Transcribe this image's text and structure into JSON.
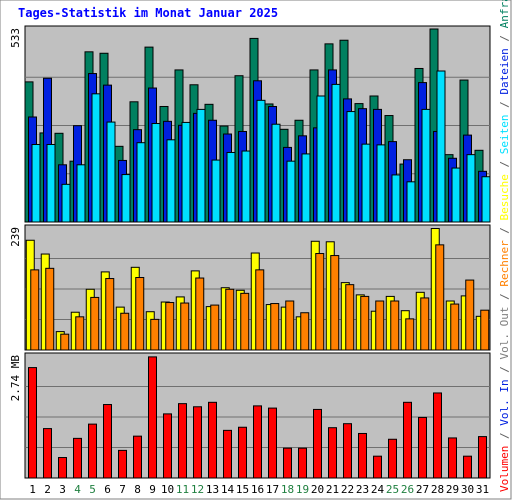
{
  "chart_data": {
    "type": "bar",
    "title": "Tages-Statistik im Monat Januar 2025",
    "days": [
      "1",
      "2",
      "3",
      "4",
      "5",
      "6",
      "7",
      "8",
      "9",
      "10",
      "11",
      "12",
      "13",
      "14",
      "15",
      "16",
      "17",
      "18",
      "19",
      "20",
      "21",
      "22",
      "23",
      "24",
      "25",
      "26",
      "27",
      "28",
      "29",
      "30",
      "31"
    ],
    "weekend_days": [
      "4",
      "5",
      "11",
      "12",
      "18",
      "19",
      "25",
      "26"
    ],
    "panels": [
      {
        "name": "requests",
        "ymax": 533,
        "ymax_label": "533",
        "series": [
          {
            "name": "Anfragen",
            "color": "#008060",
            "values": [
              387,
              246,
              245,
              168,
              470,
              466,
              209,
              332,
              483,
              319,
              420,
              379,
              325,
              265,
              404,
              507,
              326,
              256,
              281,
              420,
              492,
              502,
              327,
              348,
              294,
              160,
              424,
              533,
              186,
              392,
              198
            ]
          },
          {
            "name": "Dateien",
            "color": "#0020e0",
            "values": [
              290,
              397,
              158,
              266,
              410,
              378,
              170,
              255,
              370,
              278,
              267,
              300,
              281,
              243,
              250,
              390,
              319,
              206,
              238,
              260,
              420,
              340,
              313,
              311,
              222,
              172,
              385,
              250,
              176,
              240,
              140
            ]
          },
          {
            "name": "Seiten",
            "color": "#00e0ff",
            "values": [
              214,
              214,
              104,
              158,
              354,
              276,
              131,
              219,
              272,
              227,
              275,
              311,
              171,
              192,
              196,
              336,
              270,
              168,
              188,
              348,
              380,
              305,
              215,
              213,
              130,
              111,
              311,
              417,
              149,
              186,
              125
            ]
          }
        ]
      },
      {
        "name": "visits",
        "ymax": 239,
        "ymax_label": "239",
        "series": [
          {
            "name": "Besuche",
            "color": "#ffff00",
            "values": [
              215,
              188,
              36,
              74,
              119,
              153,
              84,
              162,
              75,
              94,
              104,
              155,
              85,
              122,
              117,
              190,
              89,
              84,
              65,
              213,
              212,
              132,
              108,
              76,
              105,
              77,
              113,
              238,
              96,
              106,
              66
            ]
          },
          {
            "name": "Rechner",
            "color": "#ff8000",
            "values": [
              157,
              160,
              31,
              65,
              103,
              140,
              72,
              142,
              60,
              93,
              92,
              141,
              88,
              119,
              111,
              157,
              91,
              96,
              73,
              189,
              185,
              128,
              105,
              96,
              96,
              61,
              102,
              206,
              90,
              137,
              78
            ]
          }
        ]
      },
      {
        "name": "volume",
        "ymax": 2.74,
        "ymax_label": "2.74 MB",
        "series": [
          {
            "name": "Volumen",
            "color": "#ff0000",
            "values": [
              2.48,
              1.11,
              0.46,
              0.89,
              1.21,
              1.65,
              0.62,
              0.94,
              2.72,
              1.44,
              1.67,
              1.6,
              1.7,
              1.07,
              1.14,
              1.62,
              1.57,
              0.67,
              0.67,
              1.54,
              1.13,
              1.22,
              1.0,
              0.49,
              0.87,
              1.7,
              1.36,
              1.91,
              0.9,
              0.49,
              0.93
            ]
          }
        ]
      }
    ],
    "legend": [
      {
        "text": "Anfragen",
        "color": "#008060"
      },
      {
        "text": "Dateien",
        "color": "#0020e0"
      },
      {
        "text": "Seiten",
        "color": "#00e0ff"
      },
      {
        "text": "Besuche",
        "color": "#ffff00"
      },
      {
        "text": "Rechner",
        "color": "#ff8000"
      },
      {
        "text": "Vol. Out",
        "color": "#808080"
      },
      {
        "text": "Vol. In",
        "color": "#0020e0"
      },
      {
        "text": "Volumen",
        "color": "#ff0000"
      }
    ],
    "legend_separator": "/",
    "legend_separator_color": "#606060"
  }
}
